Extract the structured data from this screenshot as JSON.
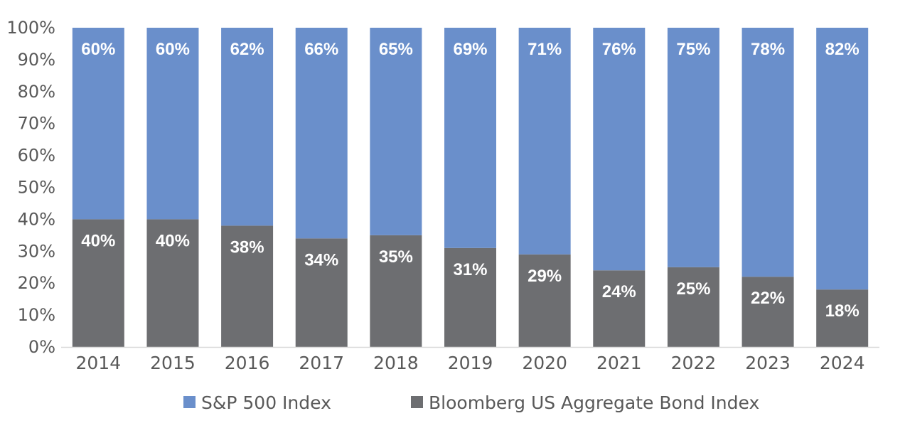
{
  "chart_data": {
    "type": "bar",
    "stacked": true,
    "categories": [
      "2014",
      "2015",
      "2016",
      "2017",
      "2018",
      "2019",
      "2020",
      "2021",
      "2022",
      "2023",
      "2024"
    ],
    "series": [
      {
        "name": "Bloomberg US Aggregate Bond Index",
        "color": "#6d6e71",
        "values": [
          40,
          40,
          38,
          34,
          35,
          31,
          29,
          24,
          25,
          22,
          18
        ],
        "labels": [
          "40%",
          "40%",
          "38%",
          "34%",
          "35%",
          "31%",
          "29%",
          "24%",
          "25%",
          "22%",
          "18%"
        ]
      },
      {
        "name": "S&P 500 Index",
        "color": "#6a8fcb",
        "values": [
          60,
          60,
          62,
          66,
          65,
          69,
          71,
          76,
          75,
          78,
          82
        ],
        "labels": [
          "60%",
          "60%",
          "62%",
          "66%",
          "65%",
          "69%",
          "71%",
          "76%",
          "75%",
          "78%",
          "82%"
        ]
      }
    ],
    "ylim": [
      0,
      100
    ],
    "yticks": [
      "0%",
      "10%",
      "20%",
      "30%",
      "40%",
      "50%",
      "60%",
      "70%",
      "80%",
      "90%",
      "100%"
    ],
    "legend": {
      "position": "bottom",
      "order": [
        "S&P 500 Index",
        "Bloomberg US Aggregate Bond Index"
      ]
    },
    "title": "",
    "xlabel": "",
    "ylabel": "",
    "grid": false
  }
}
